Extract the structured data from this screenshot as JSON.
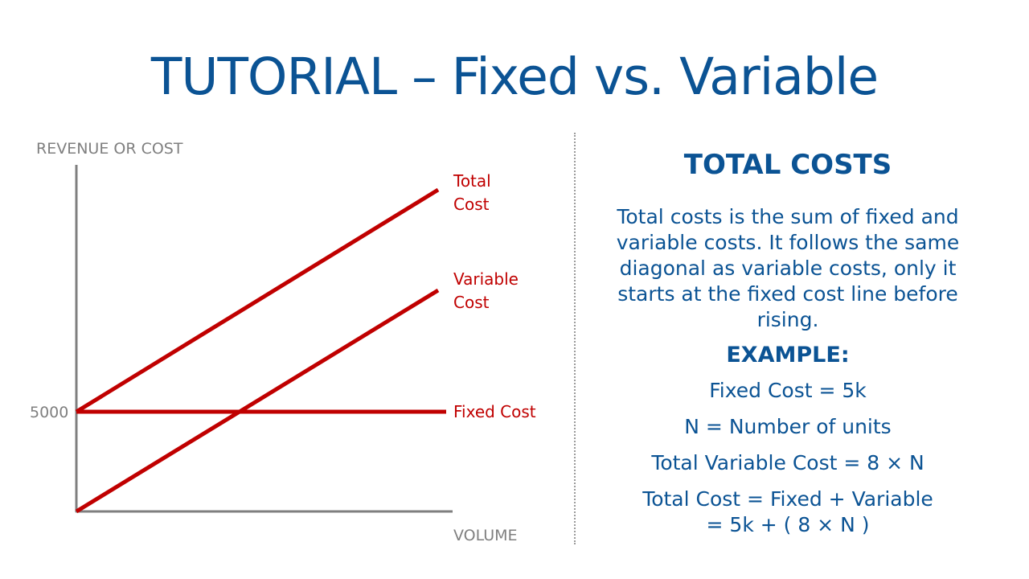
{
  "title": "TUTORIAL – Fixed vs. Variable",
  "diagram": {
    "y_axis_label": "REVENUE OR COST",
    "x_axis_label": "VOLUME",
    "y_tick_label": "5000",
    "line_color": "#c00000",
    "axis_color": "#7f7f7f",
    "lines": [
      {
        "id": "total",
        "label_lines": [
          "Total",
          "Cost"
        ]
      },
      {
        "id": "variable",
        "label_lines": [
          "Variable",
          "Cost"
        ]
      },
      {
        "id": "fixed",
        "label_lines": [
          "Fixed Cost"
        ]
      }
    ]
  },
  "panel": {
    "heading": "TOTAL COSTS",
    "body": "Total costs is the sum of fixed and variable costs. It follows the same diagonal as variable costs, only it starts at the fixed cost line before rising.",
    "example_heading": "EXAMPLE:",
    "example_lines": [
      "Fixed Cost = 5k",
      "N = Number of units",
      "Total Variable Cost = 8 × N",
      "Total Cost = Fixed + Variable",
      "= 5k + ( 8 × N )"
    ]
  },
  "colors": {
    "title": "#0b5394",
    "accent_red": "#c00000",
    "axis_gray": "#7f7f7f"
  }
}
